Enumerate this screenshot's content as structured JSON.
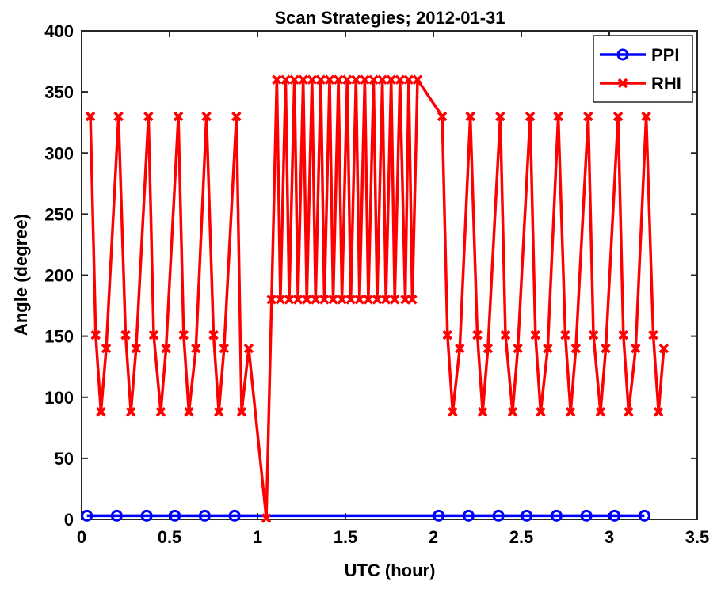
{
  "chart_data": {
    "type": "line",
    "title": "Scan Strategies;  2012-01-31",
    "xlabel": "UTC (hour)",
    "ylabel": "Angle (degree)",
    "xlim": [
      0,
      3.5
    ],
    "ylim": [
      0,
      400
    ],
    "xticks": [
      0,
      0.5,
      1,
      1.5,
      2,
      2.5,
      3,
      3.5
    ],
    "yticks": [
      0,
      50,
      100,
      150,
      200,
      250,
      300,
      350,
      400
    ],
    "xtick_labels": [
      "0",
      "0.5",
      "1",
      "1.5",
      "2",
      "2.5",
      "3",
      "3.5"
    ],
    "ytick_labels": [
      "0",
      "50",
      "100",
      "150",
      "200",
      "250",
      "300",
      "350",
      "400"
    ],
    "legend_position": "top-right",
    "series": [
      {
        "name": "PPI",
        "color": "#0000ff",
        "marker": "circle",
        "x": [
          0.03,
          0.2,
          0.37,
          0.53,
          0.7,
          0.87,
          2.03,
          2.2,
          2.37,
          2.53,
          2.7,
          2.87,
          3.03,
          3.2
        ],
        "y": [
          3,
          3,
          3,
          3,
          3,
          3,
          3,
          3,
          3,
          3,
          3,
          3,
          3,
          3
        ]
      },
      {
        "name": "RHI",
        "color": "#ff0000",
        "marker": "x",
        "x": [
          0.05,
          0.08,
          0.11,
          0.14,
          0.21,
          0.25,
          0.28,
          0.31,
          0.38,
          0.41,
          0.45,
          0.48,
          0.55,
          0.58,
          0.61,
          0.65,
          0.71,
          0.75,
          0.78,
          0.81,
          0.88,
          0.91,
          0.95,
          1.05,
          1.08,
          1.11,
          1.13,
          1.16,
          1.18,
          1.21,
          1.23,
          1.26,
          1.28,
          1.31,
          1.33,
          1.36,
          1.38,
          1.41,
          1.43,
          1.46,
          1.48,
          1.51,
          1.53,
          1.56,
          1.58,
          1.61,
          1.63,
          1.66,
          1.68,
          1.71,
          1.73,
          1.76,
          1.78,
          1.81,
          1.84,
          1.86,
          1.88,
          1.91,
          2.05,
          2.08,
          2.11,
          2.15,
          2.21,
          2.25,
          2.28,
          2.31,
          2.38,
          2.41,
          2.45,
          2.48,
          2.55,
          2.58,
          2.61,
          2.65,
          2.71,
          2.75,
          2.78,
          2.81,
          2.88,
          2.91,
          2.95,
          2.98,
          3.05,
          3.08,
          3.11,
          3.15,
          3.21,
          3.25,
          3.28,
          3.31
        ],
        "y": [
          330,
          151,
          88,
          140,
          330,
          151,
          88,
          140,
          330,
          151,
          88,
          140,
          330,
          151,
          88,
          140,
          330,
          151,
          88,
          140,
          330,
          88,
          140,
          1,
          180,
          360,
          180,
          360,
          180,
          360,
          180,
          360,
          180,
          360,
          180,
          360,
          180,
          360,
          180,
          360,
          180,
          360,
          180,
          360,
          180,
          360,
          180,
          360,
          180,
          360,
          180,
          360,
          180,
          360,
          180,
          360,
          180,
          360,
          330,
          151,
          88,
          140,
          330,
          151,
          88,
          140,
          330,
          151,
          88,
          140,
          330,
          151,
          88,
          140,
          330,
          151,
          88,
          140,
          330,
          151,
          88,
          140,
          330,
          151,
          88,
          140,
          330,
          151,
          88,
          140
        ]
      }
    ]
  }
}
